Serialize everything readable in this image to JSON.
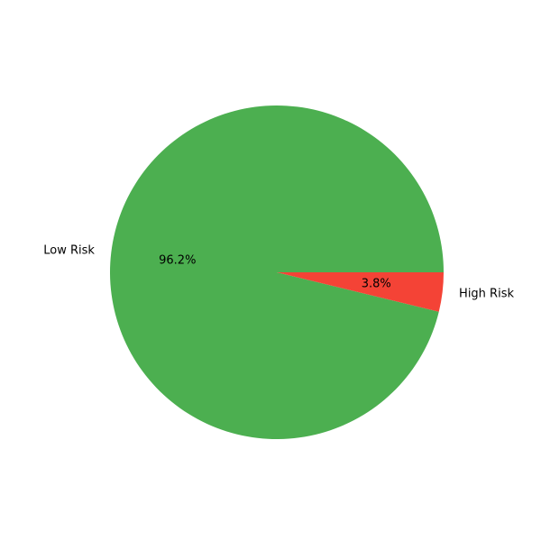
{
  "chart_data": {
    "type": "pie",
    "title": "",
    "slices": [
      {
        "label": "Low Risk",
        "value": 96.2,
        "pct_label": "96.2%",
        "color": "#4caf50"
      },
      {
        "label": "High Risk",
        "value": 3.8,
        "pct_label": "3.8%",
        "color": "#f44336"
      }
    ],
    "start_angle_deg": 0,
    "direction": "counterclockwise",
    "legend": "none"
  }
}
